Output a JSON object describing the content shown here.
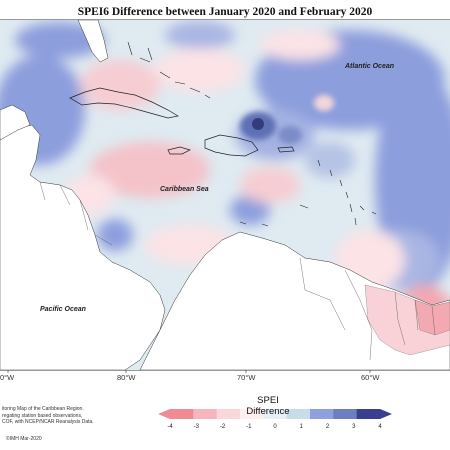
{
  "title": "SPEI6 Difference between January 2020 and February 2020",
  "labels": {
    "atlantic": "Atlantic Ocean",
    "caribbean": "Caribbean Sea",
    "pacific": "Pacific Ocean"
  },
  "longitude_ticks": [
    "0°W",
    "80°W",
    "70°W",
    "60°W"
  ],
  "legend": {
    "title": "SPEI Difference",
    "ticks": [
      "-4",
      "-3",
      "-2",
      "-1",
      "0",
      "1",
      "2",
      "3",
      "4"
    ],
    "colors": [
      "#f08a94",
      "#f5b6bd",
      "#fad7db",
      "#fdeef0",
      "#e6eef6",
      "#c8dde9",
      "#8ea0de",
      "#6d7fc2",
      "#3b3f8f"
    ]
  },
  "credits": [
    "itoring Map of the Caribbean Region.",
    "regating station based observations,",
    "COF, with NCEP/NCAR Reanalysis Data."
  ],
  "copyright": "©IMH Mar-2020",
  "colors": {
    "dry_strong": "#f2a9b1",
    "dry_light": "#fbe3e6",
    "neutral": "#dfeaf1",
    "wet_light": "#c4d8e6",
    "wet": "#8d9edd",
    "wet_strong": "#5f6fb5",
    "wet_max": "#2d3170",
    "land": "#ffffff"
  }
}
